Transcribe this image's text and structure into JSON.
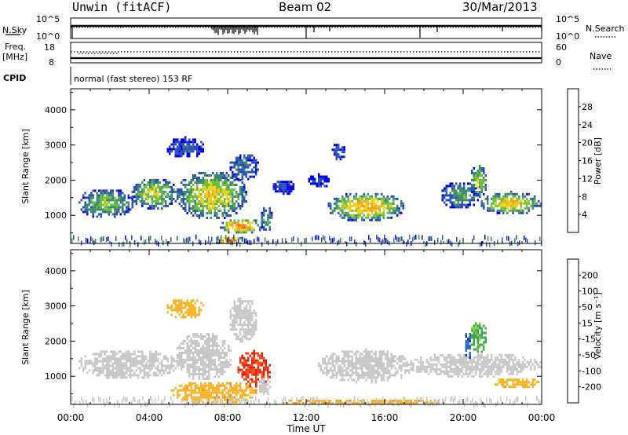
{
  "header": {
    "title": "Unwin (fitACF)",
    "beam": "Beam 02",
    "date": "30/Mar/2013"
  },
  "strips": {
    "nsky_label": "N.Sky",
    "nsky_ticks": [
      "10^5",
      "10^0"
    ],
    "nsearch_label": "N.Search",
    "nsearch_ticks": [
      "10^5",
      "10^0"
    ],
    "freq_label": "Freq.",
    "freq_unit": "[MHz]",
    "freq_ticks": [
      "18",
      "8"
    ],
    "nave_label": "Nave",
    "nave_ticks": [
      "60",
      "0"
    ],
    "cpid_label": "CPID",
    "cpid_text": "normal (fast stereo) 153 RF"
  },
  "time_axis": {
    "ticks": [
      "00:00",
      "04:00",
      "08:00",
      "12:00",
      "16:00",
      "20:00",
      "00:00"
    ],
    "label": "Time UT"
  },
  "colors": {
    "power_scale": [
      "#0000e6",
      "#2a4fb5",
      "#3d8c6e",
      "#6fbf3f",
      "#e8d21e",
      "#f3a21c",
      "#ef6a14",
      "#e32211"
    ],
    "velocity_scale": [
      "#e31a0d",
      "#f05018",
      "#f58a1c",
      "#f6b327",
      "#c8c8c8",
      "#8bd14c",
      "#3fa84a",
      "#2a6dc0",
      "#1e2ea6"
    ]
  },
  "chart_data": [
    {
      "type": "heatmap",
      "name": "power",
      "ylabel": "Slant Range [km]",
      "yticks": [
        "1000",
        "2000",
        "3000",
        "4000"
      ],
      "ylim": [
        200,
        4600
      ],
      "xlim_hours": [
        0,
        24
      ],
      "colorbar_label": "Power [dB]",
      "colorbar_ticks": [
        "4",
        "8",
        "12",
        "16",
        "20",
        "24",
        "28"
      ],
      "colorbar_range": [
        0,
        32
      ],
      "regions": [
        {
          "t0": 0.3,
          "t1": 3.2,
          "r0": 950,
          "r1": 1800,
          "level": 12
        },
        {
          "t0": 3.0,
          "t1": 5.5,
          "r0": 1200,
          "r1": 2100,
          "level": 14
        },
        {
          "t0": 5.3,
          "t1": 9.0,
          "r0": 900,
          "r1": 2300,
          "level": 16
        },
        {
          "t0": 4.8,
          "t1": 6.8,
          "r0": 2650,
          "r1": 3250,
          "level": 5
        },
        {
          "t0": 8.0,
          "t1": 9.6,
          "r0": 2000,
          "r1": 2800,
          "level": 7
        },
        {
          "t0": 7.5,
          "t1": 9.8,
          "r0": 500,
          "r1": 950,
          "level": 20
        },
        {
          "t0": 7.2,
          "t1": 8.8,
          "r0": 200,
          "r1": 450,
          "level": 24
        },
        {
          "t0": 9.6,
          "t1": 10.3,
          "r0": 550,
          "r1": 1300,
          "level": 10
        },
        {
          "t0": 10.2,
          "t1": 11.4,
          "r0": 1600,
          "r1": 2050,
          "level": 4
        },
        {
          "t0": 12.0,
          "t1": 13.2,
          "r0": 1800,
          "r1": 2200,
          "level": 4
        },
        {
          "t0": 13.0,
          "t1": 17.0,
          "r0": 850,
          "r1": 1700,
          "level": 18
        },
        {
          "t0": 13.2,
          "t1": 14.0,
          "r0": 2600,
          "r1": 3100,
          "level": 5
        },
        {
          "t0": 18.8,
          "t1": 20.8,
          "r0": 1200,
          "r1": 2000,
          "level": 10
        },
        {
          "t0": 20.3,
          "t1": 21.2,
          "r0": 1500,
          "r1": 2500,
          "level": 14
        },
        {
          "t0": 20.8,
          "t1": 24.0,
          "r0": 1050,
          "r1": 1700,
          "level": 17
        }
      ]
    },
    {
      "type": "heatmap",
      "name": "velocity",
      "ylabel": "Slant Range [km]",
      "yticks": [
        "1000",
        "2000",
        "3000",
        "4000"
      ],
      "ylim": [
        200,
        4600
      ],
      "xlim_hours": [
        0,
        24
      ],
      "colorbar_label": "Velocity [m s⁻¹]",
      "colorbar_ticks": [
        "200",
        "100",
        "50",
        "15",
        "-15",
        "-50",
        "-100",
        "-200"
      ],
      "colorbar_range": [
        -250,
        250
      ],
      "regions": [
        {
          "t0": 0.3,
          "t1": 5.5,
          "r0": 950,
          "r1": 1800,
          "level": 0
        },
        {
          "t0": 5.3,
          "t1": 8.2,
          "r0": 900,
          "r1": 2300,
          "level": 0
        },
        {
          "t0": 8.0,
          "t1": 9.5,
          "r0": 2000,
          "r1": 3300,
          "level": 0
        },
        {
          "t0": 4.8,
          "t1": 6.8,
          "r0": 2650,
          "r1": 3250,
          "level": -30
        },
        {
          "t0": 8.4,
          "t1": 10.2,
          "r0": 700,
          "r1": 1750,
          "level": -200
        },
        {
          "t0": 9.5,
          "t1": 10.2,
          "r0": 500,
          "r1": 1000,
          "level": 0
        },
        {
          "t0": 5.0,
          "t1": 9.5,
          "r0": 250,
          "r1": 900,
          "level": -40
        },
        {
          "t0": 12.5,
          "t1": 17.5,
          "r0": 850,
          "r1": 1800,
          "level": 0
        },
        {
          "t0": 10.5,
          "t1": 19.0,
          "r0": 200,
          "r1": 400,
          "level": -40
        },
        {
          "t0": 17.0,
          "t1": 24.0,
          "r0": 1000,
          "r1": 1700,
          "level": 0
        },
        {
          "t0": 20.3,
          "t1": 21.2,
          "r0": 1700,
          "r1": 2600,
          "level": 60
        },
        {
          "t0": 20.0,
          "t1": 20.4,
          "r0": 1500,
          "r1": 2300,
          "level": 180
        },
        {
          "t0": 21.5,
          "t1": 24.0,
          "r0": 700,
          "r1": 1000,
          "level": -40
        }
      ]
    }
  ]
}
